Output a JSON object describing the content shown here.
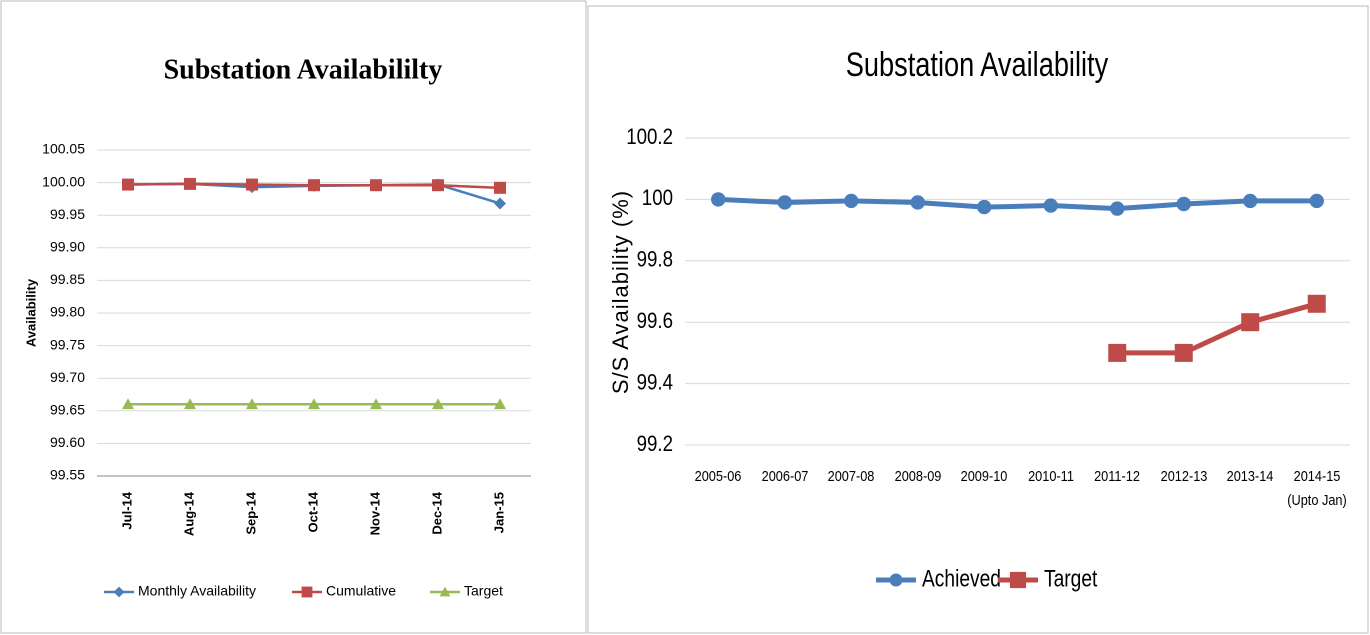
{
  "chart_data": [
    {
      "type": "line",
      "title": "Substation Availabililty",
      "y_label": "Availability",
      "categories": [
        "Jul-14",
        "Aug-14",
        "Sep-14",
        "Oct-14",
        "Nov-14",
        "Dec-14",
        "Jan-15"
      ],
      "series": [
        {
          "name": "Monthly Availability",
          "color": "#4a7ebb",
          "values": [
            99.997,
            99.998,
            99.993,
            99.995,
            99.996,
            99.997,
            99.968
          ]
        },
        {
          "name": "Cumulative",
          "color": "#be4b48",
          "values": [
            99.997,
            99.998,
            99.997,
            99.996,
            99.996,
            99.996,
            99.992
          ]
        },
        {
          "name": "Target",
          "color": "#98b954",
          "values": [
            99.66,
            99.66,
            99.66,
            99.66,
            99.66,
            99.66,
            99.66
          ]
        }
      ],
      "ylim": [
        99.55,
        100.05
      ],
      "yticks": [
        99.55,
        {
          "value": 99.6,
          "label": "99.60"
        },
        99.65,
        {
          "value": 99.7,
          "label": "99.70"
        },
        99.75,
        {
          "value": 99.8,
          "label": "99.80"
        },
        99.85,
        {
          "value": 99.9,
          "label": "99.90"
        },
        99.95,
        {
          "value": 100,
          "label": "100.00"
        },
        100.05
      ],
      "grid": true,
      "legend": "bottom"
    },
    {
      "type": "line",
      "title": "Substation Availability",
      "y_label": "S/S Availability (%)",
      "categories": [
        "2005-06",
        "2006-07",
        "2007-08",
        "2008-09",
        "2009-10",
        "2010-11",
        "2011-12",
        "2012-13",
        "2013-14",
        "2014-15\n(Upto Jan)"
      ],
      "series": [
        {
          "name": "Achieved",
          "color": "#4a7ebb",
          "values": [
            100,
            99.99,
            99.995,
            99.99,
            99.975,
            99.98,
            99.97,
            99.985,
            99.995,
            99.995
          ]
        },
        {
          "name": "Target",
          "color": "#be4b48",
          "values": [
            null,
            null,
            null,
            null,
            null,
            null,
            99.5,
            99.5,
            99.6,
            99.66
          ]
        }
      ],
      "ylim": [
        99.2,
        100.2
      ],
      "yticks": [
        99.2,
        99.4,
        99.6,
        99.8,
        100,
        100.2
      ],
      "grid": true,
      "legend": "bottom"
    }
  ]
}
